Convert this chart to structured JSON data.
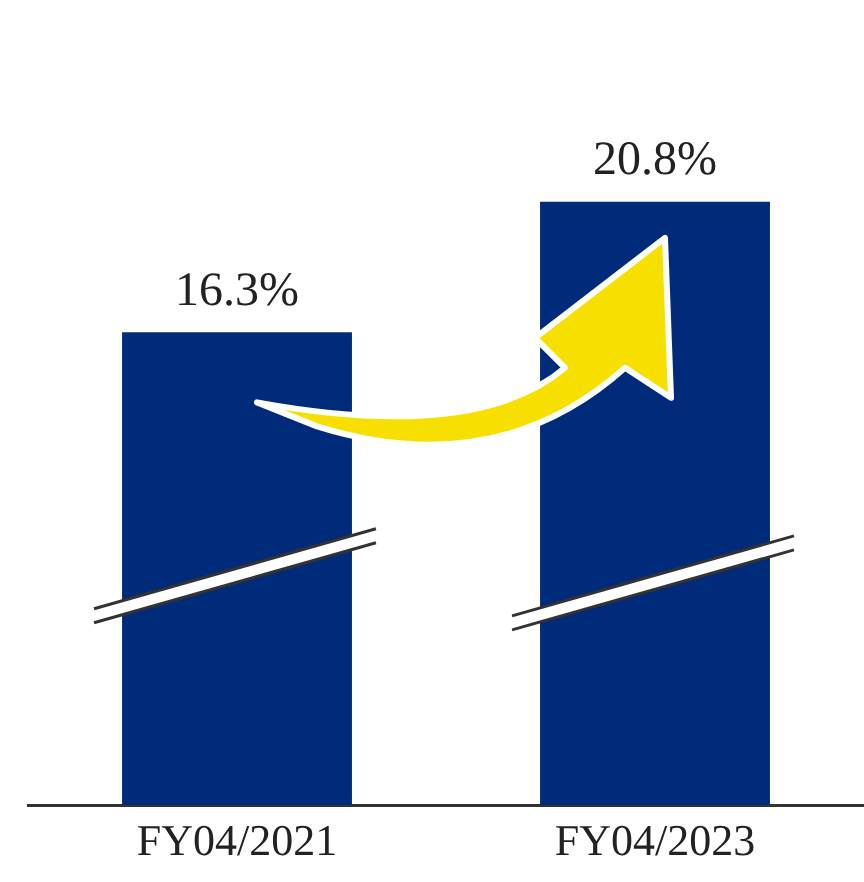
{
  "chart_data": {
    "type": "bar",
    "categories": [
      "FY04/2021",
      "FY04/2023"
    ],
    "values": [
      16.3,
      20.8
    ],
    "color": "#002a7a",
    "value_labels": [
      "16.3%",
      "20.8%"
    ],
    "tick_labels": "x",
    "grid": false,
    "legend": false
  }
}
